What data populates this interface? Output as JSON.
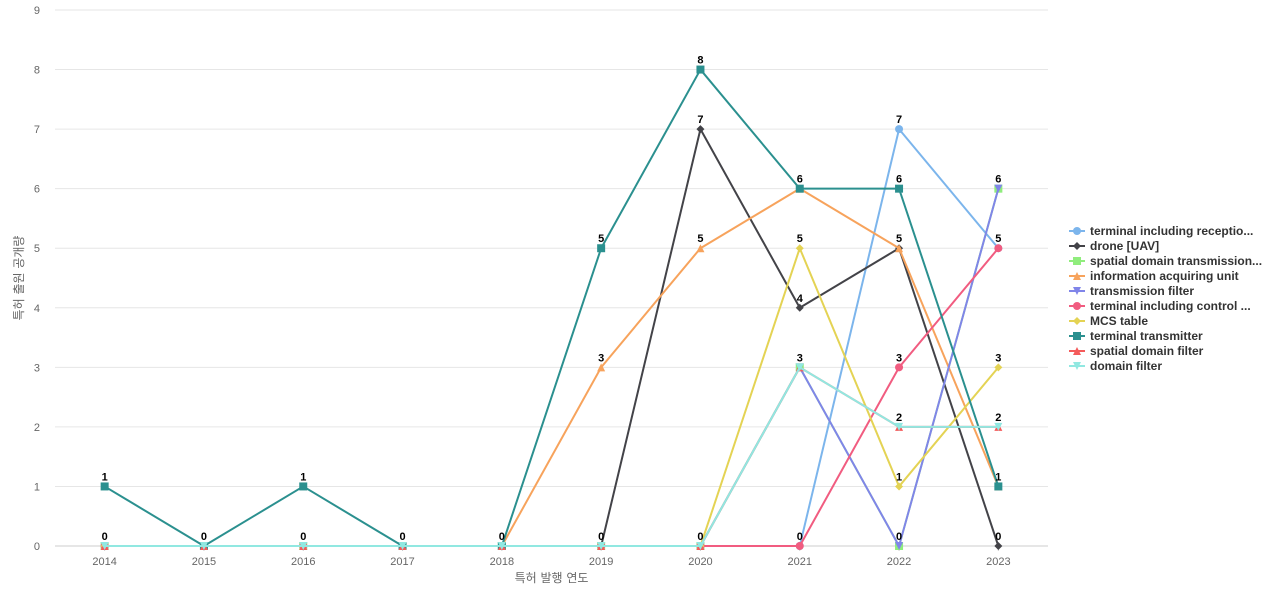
{
  "chart_data": {
    "type": "line",
    "xlabel": "특허 발행 연도",
    "ylabel": "특허 출원 공개량",
    "x": [
      "2014",
      "2015",
      "2016",
      "2017",
      "2018",
      "2019",
      "2020",
      "2021",
      "2022",
      "2023"
    ],
    "ylim": [
      0,
      9
    ],
    "yticks": [
      0,
      1,
      2,
      3,
      4,
      5,
      6,
      7,
      8,
      9
    ],
    "grid": true,
    "legend_position": "right",
    "series": [
      {
        "name": "terminal including receptio...",
        "color": "#7cb5ec",
        "marker": "circle",
        "values": [
          0,
          0,
          0,
          0,
          0,
          0,
          0,
          0,
          7,
          5
        ]
      },
      {
        "name": "drone [UAV]",
        "color": "#434348",
        "marker": "diamond",
        "values": [
          0,
          0,
          0,
          0,
          0,
          0,
          7,
          4,
          5,
          0
        ]
      },
      {
        "name": "spatial domain transmission...",
        "color": "#90ed7d",
        "marker": "square",
        "values": [
          0,
          0,
          0,
          0,
          0,
          0,
          0,
          3,
          0,
          6
        ]
      },
      {
        "name": "information acquiring unit",
        "color": "#f7a35c",
        "marker": "triangle",
        "values": [
          0,
          0,
          0,
          0,
          0,
          3,
          5,
          6,
          5,
          1
        ]
      },
      {
        "name": "transmission filter",
        "color": "#8085e9",
        "marker": "triangle-down",
        "values": [
          0,
          0,
          0,
          0,
          0,
          0,
          0,
          3,
          0,
          6
        ]
      },
      {
        "name": "terminal including control ...",
        "color": "#f15c80",
        "marker": "circle",
        "values": [
          0,
          0,
          0,
          0,
          0,
          0,
          0,
          0,
          3,
          5
        ]
      },
      {
        "name": "MCS table",
        "color": "#e4d354",
        "marker": "diamond",
        "values": [
          0,
          0,
          0,
          0,
          0,
          0,
          0,
          5,
          1,
          3
        ]
      },
      {
        "name": "terminal transmitter",
        "color": "#2b908f",
        "marker": "square",
        "values": [
          1,
          0,
          1,
          0,
          0,
          5,
          8,
          6,
          6,
          1
        ]
      },
      {
        "name": "spatial domain filter",
        "color": "#f45b5b",
        "marker": "triangle",
        "values": [
          0,
          0,
          0,
          0,
          0,
          0,
          0,
          3,
          2,
          2
        ]
      },
      {
        "name": "domain filter",
        "color": "#91e8e1",
        "marker": "triangle-down",
        "values": [
          0,
          0,
          0,
          0,
          0,
          0,
          0,
          3,
          2,
          2
        ]
      }
    ],
    "data_labels": [
      {
        "x": "2014",
        "value": "1",
        "series": "terminal transmitter"
      },
      {
        "x": "2014",
        "value": "0",
        "series": "domain filter"
      },
      {
        "x": "2015",
        "value": "0",
        "series": "domain filter"
      },
      {
        "x": "2016",
        "value": "1",
        "series": "terminal transmitter"
      },
      {
        "x": "2016",
        "value": "0",
        "series": "domain filter"
      },
      {
        "x": "2017",
        "value": "0",
        "series": "domain filter"
      },
      {
        "x": "2018",
        "value": "0",
        "series": "domain filter"
      },
      {
        "x": "2019",
        "value": "5",
        "series": "terminal transmitter"
      },
      {
        "x": "2019",
        "value": "3",
        "series": "information acquiring unit"
      },
      {
        "x": "2019",
        "value": "0",
        "series": "domain filter"
      },
      {
        "x": "2020",
        "value": "8",
        "series": "terminal transmitter"
      },
      {
        "x": "2020",
        "value": "7",
        "series": "drone [UAV]"
      },
      {
        "x": "2020",
        "value": "5",
        "series": "information acquiring unit"
      },
      {
        "x": "2020",
        "value": "0",
        "series": "domain filter"
      },
      {
        "x": "2021",
        "value": "6",
        "series": "terminal transmitter"
      },
      {
        "x": "2021",
        "value": "5",
        "series": "MCS table"
      },
      {
        "x": "2021",
        "value": "4",
        "series": "drone [UAV]"
      },
      {
        "x": "2021",
        "value": "3",
        "series": "domain filter"
      },
      {
        "x": "2021",
        "value": "0",
        "series": "terminal including control ..."
      },
      {
        "x": "2022",
        "value": "7",
        "series": "terminal including receptio..."
      },
      {
        "x": "2022",
        "value": "6",
        "series": "terminal transmitter"
      },
      {
        "x": "2022",
        "value": "5",
        "series": "drone [UAV]"
      },
      {
        "x": "2022",
        "value": "3",
        "series": "terminal including control ..."
      },
      {
        "x": "2022",
        "value": "2",
        "series": "domain filter"
      },
      {
        "x": "2022",
        "value": "1",
        "series": "MCS table"
      },
      {
        "x": "2022",
        "value": "0",
        "series": "spatial domain transmission..."
      },
      {
        "x": "2023",
        "value": "6",
        "series": "spatial domain transmission..."
      },
      {
        "x": "2023",
        "value": "5",
        "series": "terminal including control ..."
      },
      {
        "x": "2023",
        "value": "3",
        "series": "MCS table"
      },
      {
        "x": "2023",
        "value": "2",
        "series": "domain filter"
      },
      {
        "x": "2023",
        "value": "1",
        "series": "terminal transmitter"
      },
      {
        "x": "2023",
        "value": "0",
        "series": "drone [UAV]"
      }
    ]
  }
}
